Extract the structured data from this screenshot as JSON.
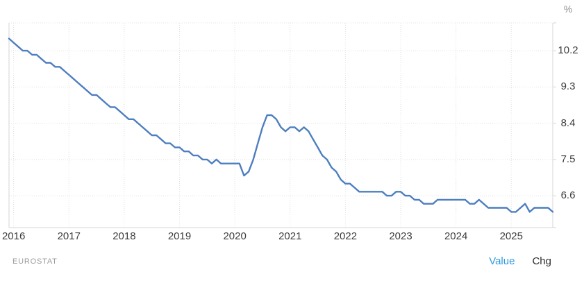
{
  "chart_data": {
    "type": "line",
    "title": "",
    "unit_label": "%",
    "xlabel": "",
    "ylabel": "%",
    "grid": true,
    "frequency": "monthly",
    "x_start_month": "2015-12",
    "x_end_month": "2025-10",
    "x_tick_labels": [
      "2016",
      "2017",
      "2018",
      "2019",
      "2020",
      "2021",
      "2022",
      "2023",
      "2024",
      "2025"
    ],
    "y_tick_values": [
      10.2,
      9.3,
      8.4,
      7.5,
      6.6
    ],
    "y_tick_labels": [
      "10.2",
      "9.3",
      "8.4",
      "7.5",
      "6.6"
    ],
    "ylim": [
      5.81,
      10.89
    ],
    "legend_position": "none",
    "series": [
      {
        "name": "Value",
        "color": "#4d7ebf",
        "values": [
          10.5,
          10.4,
          10.3,
          10.2,
          10.2,
          10.1,
          10.1,
          10.0,
          9.9,
          9.9,
          9.8,
          9.8,
          9.7,
          9.6,
          9.5,
          9.4,
          9.3,
          9.2,
          9.1,
          9.1,
          9.0,
          8.9,
          8.8,
          8.8,
          8.7,
          8.6,
          8.5,
          8.5,
          8.4,
          8.3,
          8.2,
          8.1,
          8.1,
          8.0,
          7.9,
          7.9,
          7.8,
          7.8,
          7.7,
          7.7,
          7.6,
          7.6,
          7.5,
          7.5,
          7.4,
          7.5,
          7.4,
          7.4,
          7.4,
          7.4,
          7.4,
          7.1,
          7.2,
          7.5,
          7.9,
          8.3,
          8.6,
          8.6,
          8.5,
          8.3,
          8.2,
          8.3,
          8.3,
          8.2,
          8.3,
          8.2,
          8.0,
          7.8,
          7.6,
          7.5,
          7.3,
          7.2,
          7.0,
          6.9,
          6.9,
          6.8,
          6.7,
          6.7,
          6.7,
          6.7,
          6.7,
          6.7,
          6.6,
          6.6,
          6.7,
          6.7,
          6.6,
          6.6,
          6.5,
          6.5,
          6.4,
          6.4,
          6.4,
          6.5,
          6.5,
          6.5,
          6.5,
          6.5,
          6.5,
          6.5,
          6.4,
          6.4,
          6.5,
          6.4,
          6.3,
          6.3,
          6.3,
          6.3,
          6.3,
          6.2,
          6.2,
          6.3,
          6.4,
          6.2,
          6.3,
          6.3,
          6.3,
          6.3,
          6.2
        ]
      }
    ]
  },
  "footer": {
    "source_label": "EUROSTAT",
    "value_label": "Value",
    "chg_label": "Chg"
  },
  "colors": {
    "line": "#4d7ebf",
    "grid": "#e1e1e1",
    "border": "#d6d6d6",
    "tick_text": "#3d3d3d",
    "unit_text": "#8f8f8f",
    "source_text": "#9b9b9b",
    "value_link": "#2f9bdd",
    "chg_text": "#2d2d2d"
  }
}
